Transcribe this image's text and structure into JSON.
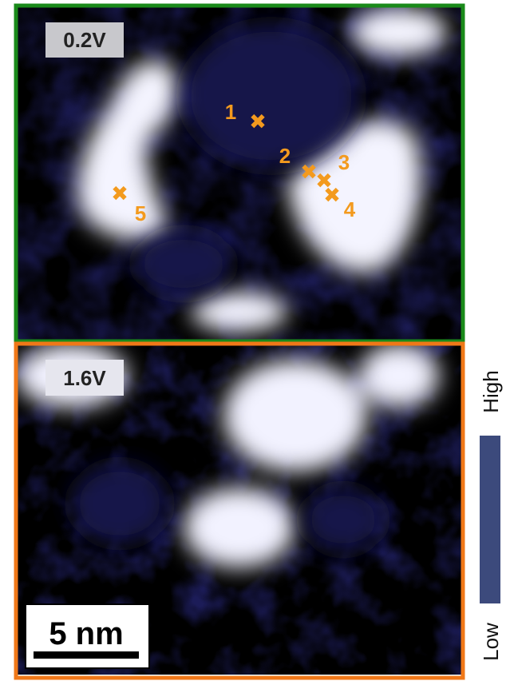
{
  "panels": [
    {
      "label": "0.2V",
      "markers": [
        "1",
        "2",
        "3",
        "4",
        "5"
      ]
    },
    {
      "label": "1.6V"
    }
  ],
  "scale_bar": "5 nm",
  "colorbar": {
    "high": "High",
    "low": "Low"
  }
}
